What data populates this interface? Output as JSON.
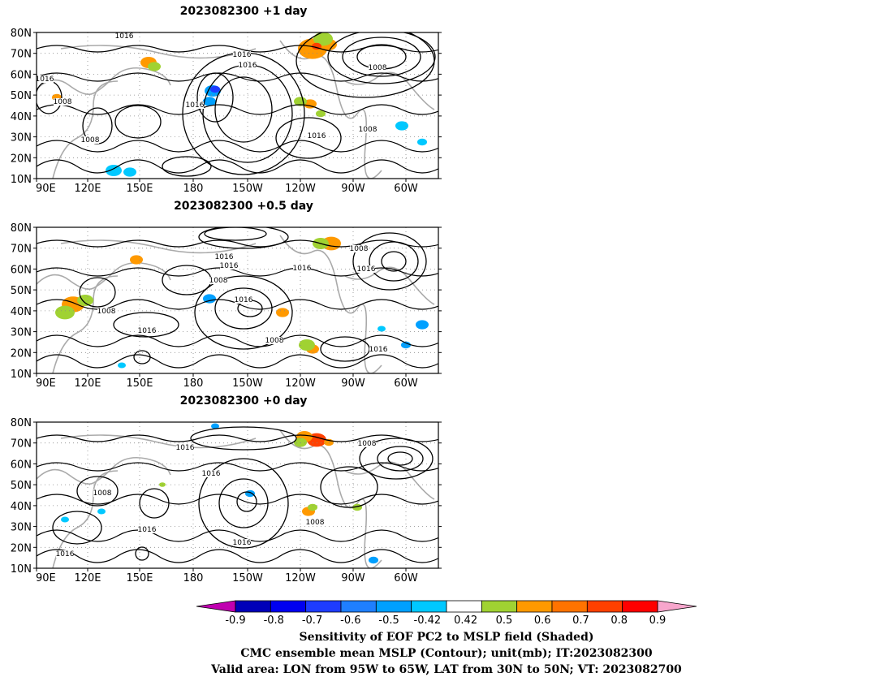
{
  "panels": [
    {
      "title": "2023082300  +1 day",
      "contour_labels": [
        "1016",
        "1016",
        "1016",
        "1008",
        "1016",
        "1008",
        "1008",
        "1016",
        "1008",
        "1016"
      ]
    },
    {
      "title": "2023082300  +0.5 day",
      "contour_labels": [
        "1016",
        "1016",
        "1008",
        "1016",
        "1008",
        "1016",
        "1008",
        "1016",
        "1008",
        "1016",
        "1016"
      ]
    },
    {
      "title": "2023082300  +0 day",
      "contour_labels": [
        "1016",
        "1016",
        "1008",
        "1016",
        "1016",
        "1008",
        "1016",
        "1008"
      ]
    }
  ],
  "axes": {
    "lat_labels": [
      "80N",
      "70N",
      "60N",
      "50N",
      "40N",
      "30N",
      "20N",
      "10N"
    ],
    "lon_labels": [
      "90E",
      "120E",
      "150E",
      "180",
      "150W",
      "120W",
      "90W",
      "60W"
    ]
  },
  "colorbar": {
    "tick_labels": [
      "-0.9",
      "-0.8",
      "-0.7",
      "-0.6",
      "-0.5",
      "-0.42",
      "0.42",
      "0.5",
      "0.6",
      "0.7",
      "0.8",
      "0.9"
    ],
    "below_color": "#c000b0",
    "above_color": "#f7a6cc",
    "colors": [
      "#0000b8",
      "#0000f0",
      "#1e3cff",
      "#1f7fff",
      "#00a0ff",
      "#00c8ff",
      "#ffffff",
      "#a0d232",
      "#ff9900",
      "#ff7300",
      "#ff4000",
      "#ff0000"
    ]
  },
  "caption": {
    "line1": "Sensitivity of EOF PC2 to MSLP field (Shaded)",
    "line2": "CMC ensemble mean MSLP (Contour); unit(mb); IT:2023082300",
    "line3": "Valid area: LON from 95W to 65W, LAT from 30N to 50N; VT: 2023082700"
  }
}
